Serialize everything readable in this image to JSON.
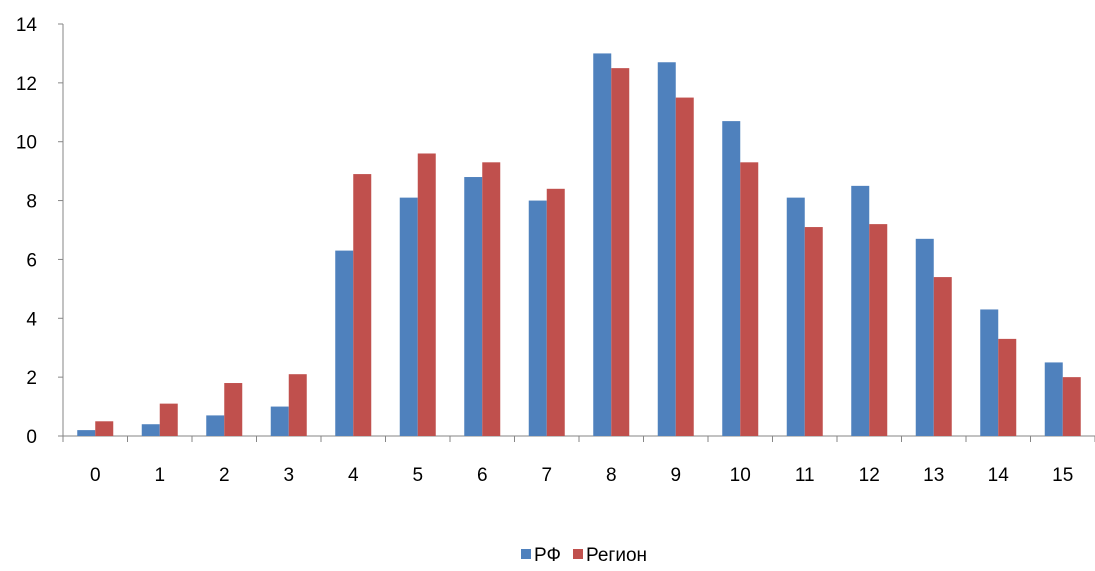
{
  "chart_data": {
    "type": "bar",
    "categories": [
      "0",
      "1",
      "2",
      "3",
      "4",
      "5",
      "6",
      "7",
      "8",
      "9",
      "10",
      "11",
      "12",
      "13",
      "14",
      "15"
    ],
    "series": [
      {
        "name": "РФ",
        "color": "#4f81bd",
        "values": [
          0.2,
          0.4,
          0.7,
          1.0,
          6.3,
          8.1,
          8.8,
          8.0,
          13.0,
          12.7,
          10.7,
          8.1,
          8.5,
          6.7,
          4.3,
          2.5
        ]
      },
      {
        "name": "Регион",
        "color": "#c0504d",
        "values": [
          0.5,
          1.1,
          1.8,
          2.1,
          8.9,
          9.6,
          9.3,
          8.4,
          12.5,
          11.5,
          9.3,
          7.1,
          7.2,
          5.4,
          3.3,
          2.0
        ]
      }
    ],
    "ylim": [
      0,
      14
    ],
    "yticks": [
      0,
      2,
      4,
      6,
      8,
      10,
      12,
      14
    ],
    "grid": false,
    "legend_position": "bottom"
  }
}
